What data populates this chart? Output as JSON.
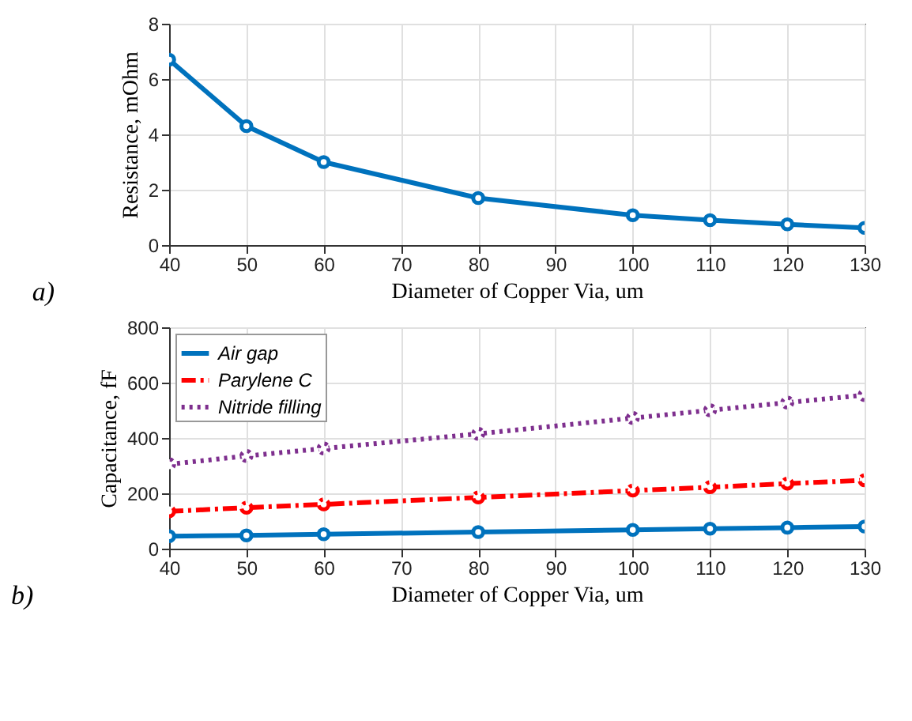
{
  "chart_data": [
    {
      "type": "line",
      "xlabel": "Diameter of Copper Via, um",
      "ylabel": "Resistance, mOhm",
      "x": [
        40,
        50,
        60,
        80,
        100,
        110,
        120,
        130
      ],
      "series": [
        {
          "color": "#0072bd",
          "line_style": "solid",
          "values": [
            6.7,
            4.3,
            3.0,
            1.7,
            1.08,
            0.9,
            0.75,
            0.62
          ]
        }
      ],
      "xlim": [
        40,
        130
      ],
      "xticks": [
        40,
        50,
        60,
        70,
        80,
        90,
        100,
        110,
        120,
        130
      ],
      "ylim": [
        0,
        8
      ],
      "yticks": [
        0,
        2,
        4,
        6,
        8
      ],
      "grid": true,
      "marker": "circle",
      "annotations": [
        "a)"
      ]
    },
    {
      "type": "line",
      "xlabel": "Diameter of Copper Via, um",
      "ylabel": "Capacitance, fF",
      "x": [
        40,
        50,
        60,
        80,
        100,
        110,
        120,
        130
      ],
      "series": [
        {
          "name": "Air gap",
          "color": "#0072bd",
          "line_style": "solid",
          "values": [
            45,
            48,
            52,
            60,
            68,
            72,
            76,
            80
          ]
        },
        {
          "name": "Parylene C",
          "color": "#ff0000",
          "line_style": "dashed",
          "values": [
            135,
            148,
            160,
            185,
            210,
            222,
            235,
            247
          ]
        },
        {
          "name": "Nitride filling",
          "color": "#7e2f8e",
          "line_style": "dotted",
          "values": [
            305,
            335,
            362,
            415,
            472,
            500,
            528,
            555
          ]
        }
      ],
      "xlim": [
        40,
        130
      ],
      "xticks": [
        40,
        50,
        60,
        70,
        80,
        90,
        100,
        110,
        120,
        130
      ],
      "ylim": [
        0,
        800
      ],
      "yticks": [
        0,
        200,
        400,
        600,
        800
      ],
      "grid": true,
      "marker": "circle",
      "legend": "top left",
      "annotations": [
        "b)"
      ]
    }
  ]
}
